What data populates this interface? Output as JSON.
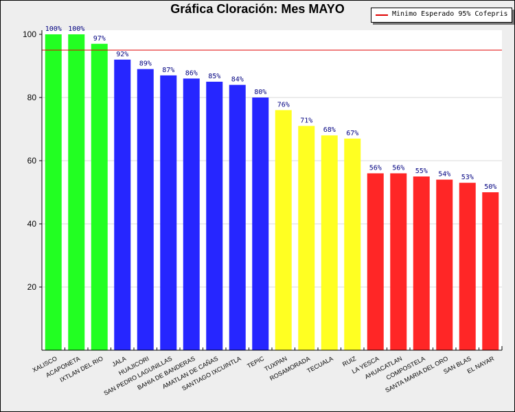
{
  "chart_data": {
    "type": "bar",
    "title": "Gráfica Cloración: Mes MAYO",
    "xlabel": "",
    "ylabel": "",
    "ylim": [
      0,
      100
    ],
    "yticks": [
      20,
      40,
      60,
      80,
      100
    ],
    "grid": true,
    "legend_position": "top-right",
    "categories": [
      "XALISCO",
      "ACAPONETA",
      "IXTLAN DEL RIO",
      "JALA",
      "HUAJICORI",
      "SAN PEDRO LAGUNILLAS",
      "BAHIA DE BANDERAS",
      "AMATLAN DE CAÑAS",
      "SANTIAGO IXCUINTLA",
      "TEPIC",
      "TUXPAN",
      "ROSAMORADA",
      "TECUALA",
      "RUIZ",
      "LA YESCA",
      "AHUACATLAN",
      "COMPOSTELA",
      "SANTA MARIA DEL ORO",
      "SAN BLAS",
      "EL NAYAR"
    ],
    "values": [
      100,
      100,
      97,
      92,
      89,
      87,
      86,
      85,
      84,
      80,
      76,
      71,
      68,
      67,
      56,
      56,
      55,
      54,
      53,
      50
    ],
    "value_labels": [
      "100%",
      "100%",
      "97%",
      "92%",
      "89%",
      "87%",
      "86%",
      "85%",
      "84%",
      "80%",
      "76%",
      "71%",
      "68%",
      "67%",
      "56%",
      "56%",
      "55%",
      "54%",
      "53%",
      "50%"
    ],
    "bar_colors": [
      "#22ff22",
      "#22ff22",
      "#22ff22",
      "#2626ff",
      "#2626ff",
      "#2626ff",
      "#2626ff",
      "#2626ff",
      "#2626ff",
      "#2626ff",
      "#ffff22",
      "#ffff22",
      "#ffff22",
      "#ffff22",
      "#ff2626",
      "#ff2626",
      "#ff2626",
      "#ff2626",
      "#ff2626",
      "#ff2626"
    ],
    "reference_line": {
      "value": 95,
      "label": "Minimo Esperado 95% Cofepris",
      "color": "#e00000"
    }
  }
}
